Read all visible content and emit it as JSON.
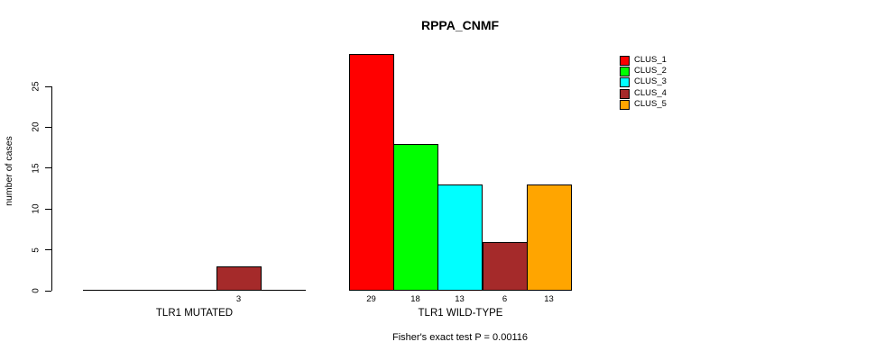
{
  "chart_data": {
    "type": "bar",
    "title": "RPPA_CNMF",
    "ylabel": "number of cases",
    "xlabel": "",
    "ylim": [
      0,
      25
    ],
    "yticks": [
      0,
      5,
      10,
      15,
      20,
      25
    ],
    "grid": false,
    "legend_position": "top-right",
    "series": [
      {
        "name": "CLUS_1",
        "color": "#ff0000"
      },
      {
        "name": "CLUS_2",
        "color": "#00ff00"
      },
      {
        "name": "CLUS_3",
        "color": "#00ffff"
      },
      {
        "name": "CLUS_4",
        "color": "#a52a2a"
      },
      {
        "name": "CLUS_5",
        "color": "#ffa500"
      }
    ],
    "groups": [
      {
        "label": "TLR1 MUTATED",
        "values": [
          0,
          0,
          0,
          3,
          0
        ]
      },
      {
        "label": "TLR1 WILD-TYPE",
        "values": [
          29,
          18,
          13,
          6,
          13
        ]
      }
    ],
    "caption": "Fisher's exact test P = 0.00116"
  }
}
